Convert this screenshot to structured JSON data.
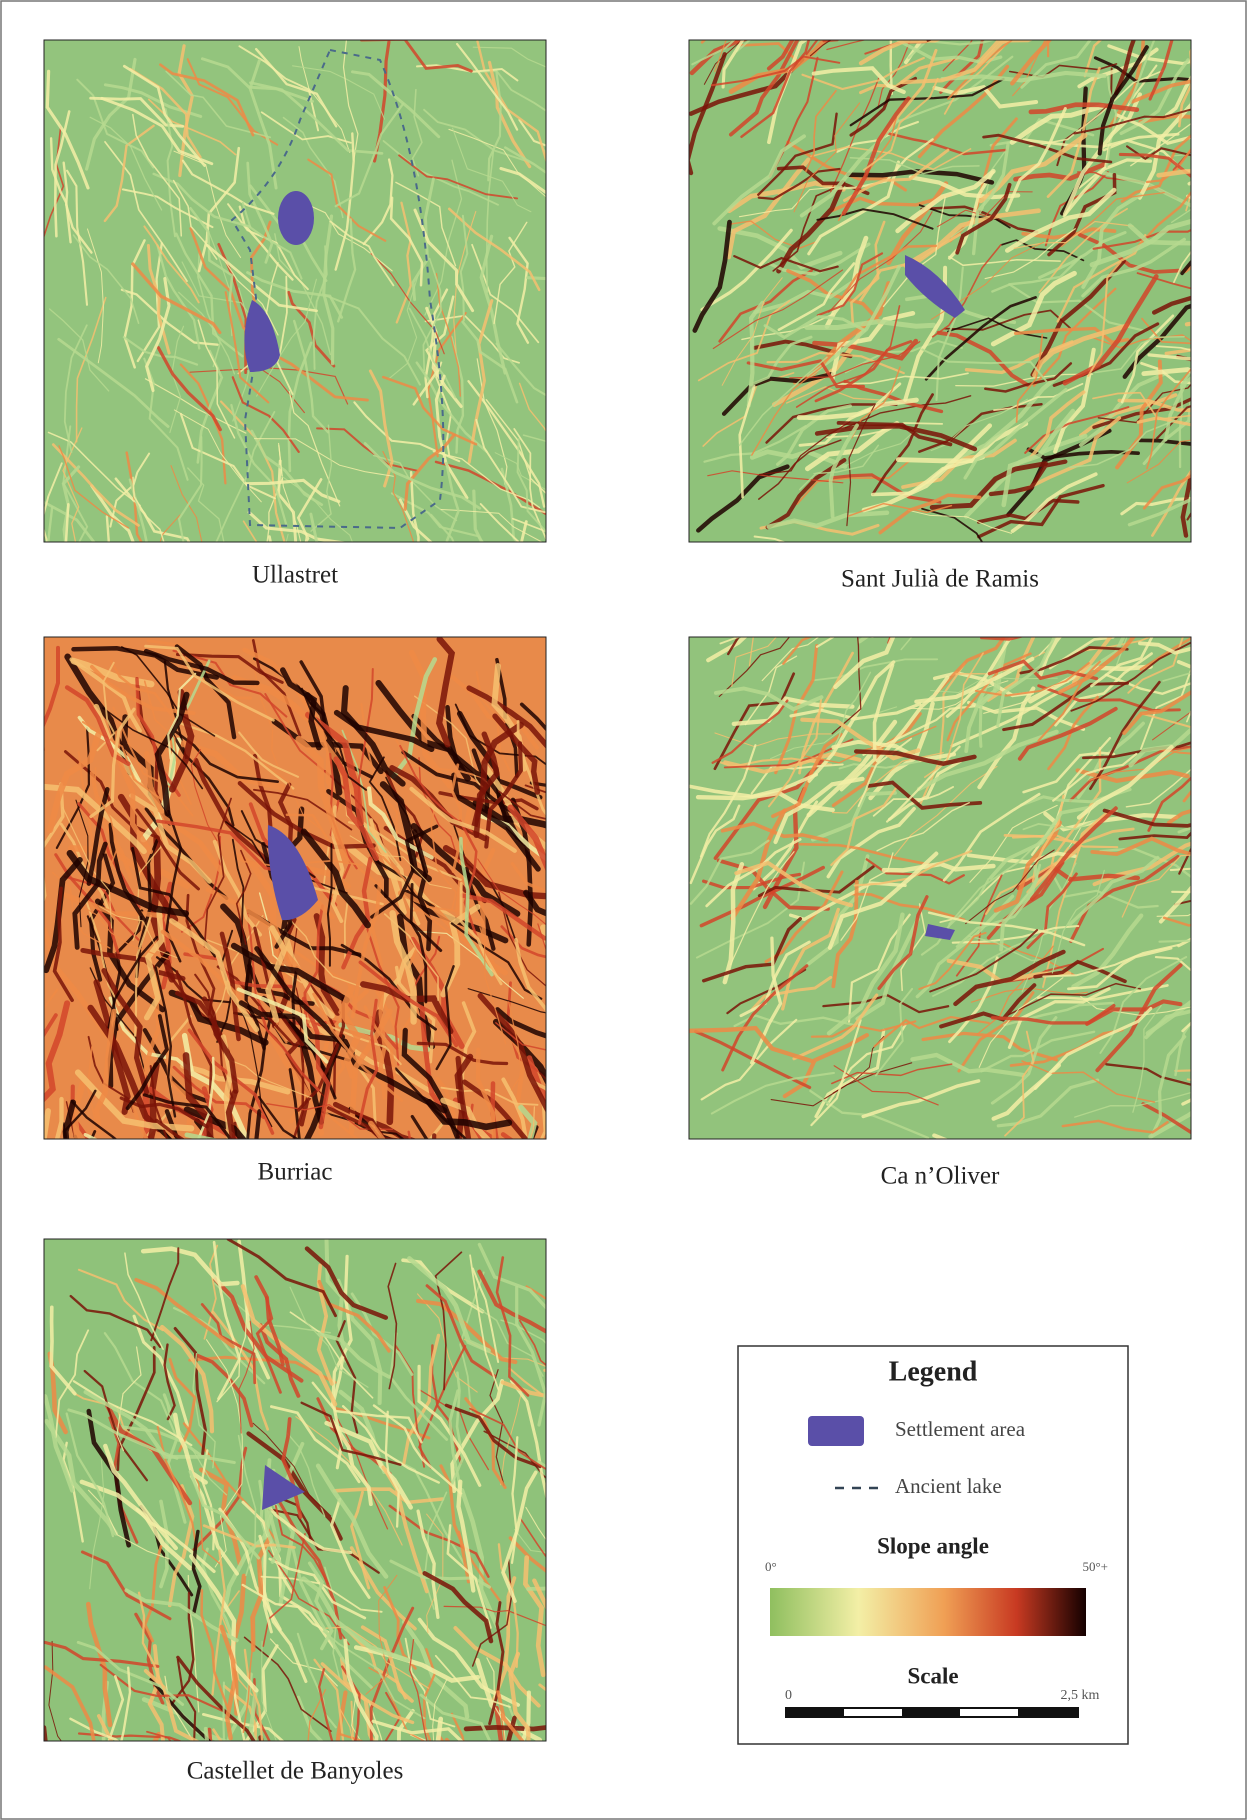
{
  "panels": [
    {
      "label": "Ullastret"
    },
    {
      "label": "Sant Julià de Ramis"
    },
    {
      "label": "Burriac"
    },
    {
      "label": "Ca n’Oliver"
    },
    {
      "label": "Castellet de Banyoles"
    }
  ],
  "legend": {
    "title": "Legend",
    "settlement": "Settlement area",
    "lake": "Ancient lake",
    "slope_title": "Slope angle",
    "slope_min": "0°",
    "slope_max": "50°+",
    "scale_title": "Scale",
    "scale_min": "0",
    "scale_max": "2,5 km"
  }
}
